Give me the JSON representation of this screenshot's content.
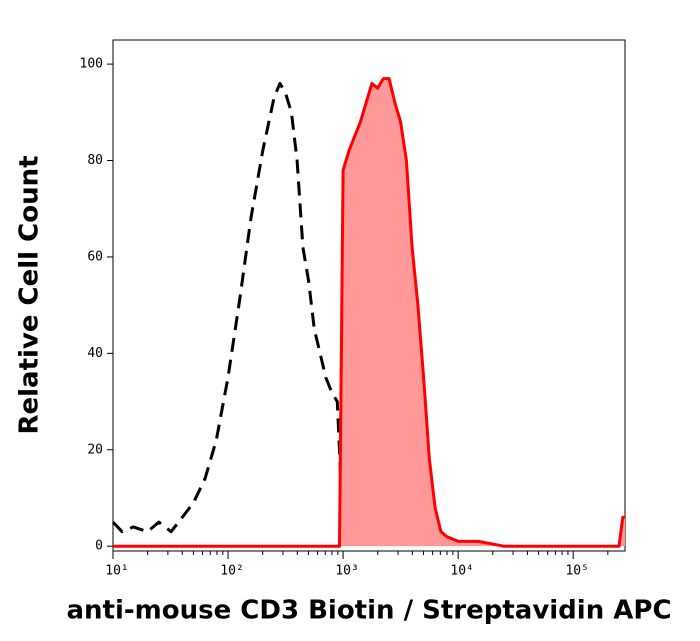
{
  "chart_data": {
    "type": "histogram-overlay",
    "x_label": "anti-mouse CD3 Biotin / Streptavidin APC",
    "y_label": "Relative Cell Count",
    "xscale": "log",
    "xlim": [
      10,
      282000
    ],
    "ylim": [
      -1,
      105
    ],
    "xticks": [
      {
        "value": 10,
        "label": "10¹"
      },
      {
        "value": 100,
        "label": "10²"
      },
      {
        "value": 1000,
        "label": "10³"
      },
      {
        "value": 10000,
        "label": "10⁴"
      },
      {
        "value": 100000,
        "label": "10⁵"
      }
    ],
    "yticks": [
      0,
      20,
      40,
      60,
      80,
      100
    ],
    "series": [
      {
        "color": "#000000",
        "style": "dashed",
        "fill": null,
        "x": [
          10,
          12,
          15,
          20,
          25,
          32,
          40,
          50,
          63,
          79,
          100,
          126,
          158,
          200,
          251,
          282,
          316,
          355,
          398,
          447,
          501,
          562,
          631,
          708,
          794,
          891,
          950,
          1000
        ],
        "values": [
          5,
          3,
          4,
          3,
          5,
          3,
          6,
          9,
          14,
          22,
          35,
          51,
          68,
          82,
          93,
          96,
          94,
          90,
          80,
          62,
          55,
          45,
          40,
          35,
          32,
          30,
          15,
          0
        ]
      },
      {
        "color": "#ff0000",
        "style": "solid",
        "fill": "#ff9999",
        "x": [
          10,
          100,
          500,
          900,
          930,
          1000,
          1122,
          1259,
          1413,
          1585,
          1778,
          1995,
          2239,
          2512,
          2818,
          3162,
          3548,
          3981,
          4467,
          5012,
          5623,
          6310,
          7079,
          7943,
          10000,
          15000,
          25000,
          40000,
          63000,
          100000,
          158000,
          250000,
          270000,
          282000
        ],
        "values": [
          0,
          0,
          0,
          0,
          0,
          78,
          82,
          85,
          88,
          92,
          96,
          95,
          97,
          97,
          92,
          88,
          80,
          62,
          50,
          35,
          18,
          8,
          3,
          2,
          1,
          1,
          0,
          0,
          0,
          0,
          0,
          0,
          6,
          6
        ]
      }
    ]
  }
}
